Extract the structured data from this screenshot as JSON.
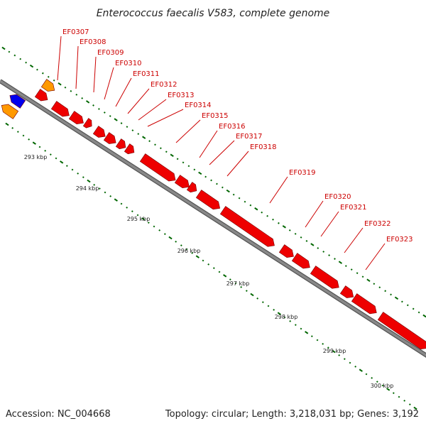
{
  "title": "Enterococcus faecalis V583, complete genome",
  "footer": {
    "accession": "Accession: NC_004668",
    "summary": "Topology: circular; Length: 3,218,031 bp; Genes: 3,192"
  },
  "colors": {
    "gene_forward": "#ee0000",
    "gene_reverse": "#0000ee",
    "gene_other": "#ff9900",
    "backbone": "#888888",
    "ticks": "#006600",
    "labels": "#cc0000"
  },
  "kbp_labels": [
    "293 kbp",
    "294 kbp",
    "295 kbp",
    "296 kbp",
    "297 kbp",
    "298 kbp",
    "299 kbp",
    "300 kbp"
  ],
  "genes": [
    {
      "name": "EF0307"
    },
    {
      "name": "EF0308"
    },
    {
      "name": "EF0309"
    },
    {
      "name": "EF0310"
    },
    {
      "name": "EF0311"
    },
    {
      "name": "EF0312"
    },
    {
      "name": "EF0313"
    },
    {
      "name": "EF0314"
    },
    {
      "name": "EF0315"
    },
    {
      "name": "EF0316"
    },
    {
      "name": "EF0317"
    },
    {
      "name": "EF0318"
    },
    {
      "name": "EF0319"
    },
    {
      "name": "EF0320"
    },
    {
      "name": "EF0321"
    },
    {
      "name": "EF0322"
    },
    {
      "name": "EF0323"
    }
  ]
}
